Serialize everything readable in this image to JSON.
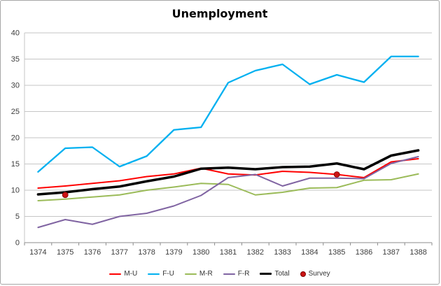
{
  "chart_data": {
    "type": "line",
    "title": "Unemployment",
    "xlabel": "",
    "ylabel": "",
    "x": [
      1374,
      1375,
      1376,
      1377,
      1378,
      1379,
      1380,
      1381,
      1382,
      1383,
      1384,
      1385,
      1386,
      1387,
      1388
    ],
    "ylim": [
      0,
      40
    ],
    "ytick_step": 5,
    "grid": true,
    "grid_color": "#C6C6C6",
    "legend_position": "bottom",
    "series": [
      {
        "name": "M-U",
        "color": "#FF0000",
        "width": 2,
        "values": [
          10.4,
          10.8,
          11.3,
          11.8,
          12.6,
          13.1,
          14.2,
          13.1,
          12.9,
          13.6,
          13.4,
          13.0,
          12.4,
          15.4,
          16.0
        ]
      },
      {
        "name": "F-U",
        "color": "#00B0F0",
        "width": 2.3,
        "values": [
          13.5,
          18.0,
          18.2,
          14.5,
          16.5,
          21.5,
          22.0,
          30.5,
          32.8,
          34.0,
          30.2,
          32.0,
          30.6,
          35.5,
          35.5
        ]
      },
      {
        "name": "M-R",
        "color": "#9BBB59",
        "width": 2,
        "values": [
          8.0,
          8.3,
          8.7,
          9.1,
          10.0,
          10.6,
          11.3,
          11.1,
          9.1,
          9.6,
          10.4,
          10.5,
          11.9,
          12.0,
          13.1
        ]
      },
      {
        "name": "F-R",
        "color": "#8064A2",
        "width": 2,
        "values": [
          2.9,
          4.4,
          3.5,
          5.0,
          5.6,
          7.0,
          9.0,
          12.4,
          13.0,
          10.8,
          12.3,
          12.3,
          12.2,
          15.1,
          16.4
        ]
      },
      {
        "name": "Total",
        "color": "#000000",
        "width": 3.5,
        "values": [
          9.2,
          9.6,
          10.2,
          10.7,
          11.7,
          12.6,
          14.1,
          14.3,
          14.0,
          14.4,
          14.5,
          15.1,
          14.0,
          16.6,
          17.6
        ]
      }
    ],
    "points_series": {
      "name": "Survey",
      "color": "#CC1414",
      "points": [
        {
          "x": 1375,
          "y": 9.1
        },
        {
          "x": 1385,
          "y": 13.0
        }
      ]
    }
  }
}
